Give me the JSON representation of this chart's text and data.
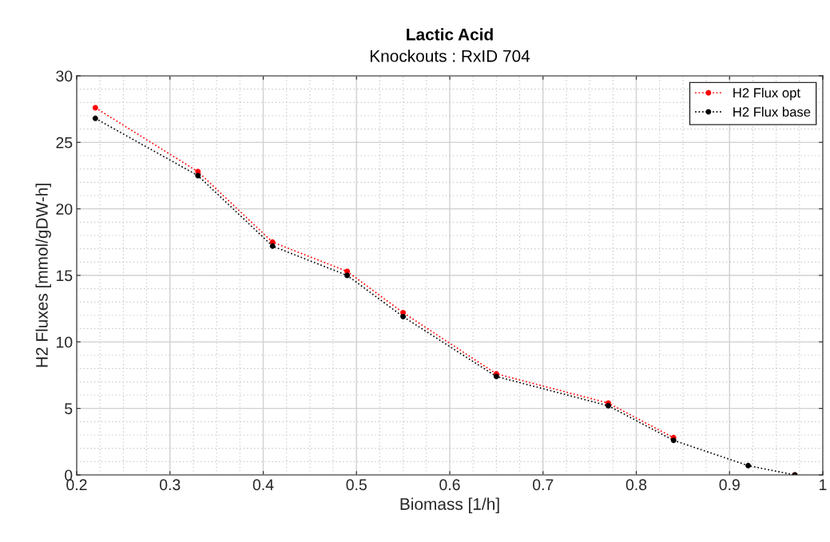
{
  "chart_data": {
    "type": "line",
    "title": "Lactic Acid",
    "subtitle": "Knockouts : RxID 704",
    "xlabel": "Biomass [1/h]",
    "ylabel": "H2 Fluxes [mmol/gDW-h]",
    "x": [
      0.22,
      0.33,
      0.41,
      0.49,
      0.55,
      0.65,
      0.77,
      0.84,
      0.92,
      0.97
    ],
    "series": [
      {
        "name": "H2 Flux opt",
        "color": "#ff0000",
        "values": [
          27.6,
          22.8,
          17.5,
          15.3,
          12.2,
          7.6,
          5.4,
          2.8,
          null,
          0
        ]
      },
      {
        "name": "H2 Flux base",
        "color": "#000000",
        "values": [
          26.8,
          22.5,
          17.2,
          15.0,
          11.9,
          7.4,
          5.2,
          2.6,
          0.7,
          0
        ]
      }
    ],
    "xlim": [
      0.2,
      1
    ],
    "xticks": [
      {
        "value": 0.2,
        "label": "0.2"
      },
      {
        "value": 0.3,
        "label": "0.3"
      },
      {
        "value": 0.4,
        "label": "0.4"
      },
      {
        "value": 0.5,
        "label": "0.5"
      },
      {
        "value": 0.6,
        "label": "0.6"
      },
      {
        "value": 0.7,
        "label": "0.7"
      },
      {
        "value": 0.8,
        "label": "0.8"
      },
      {
        "value": 0.9,
        "label": "0.9"
      },
      {
        "value": 1,
        "label": "1"
      }
    ],
    "ylim": [
      0,
      30
    ],
    "yticks": [
      0,
      5,
      10,
      15,
      20,
      25,
      30
    ],
    "grid": true,
    "legend": "top right",
    "marker": "circle",
    "line_style": "dotted"
  }
}
